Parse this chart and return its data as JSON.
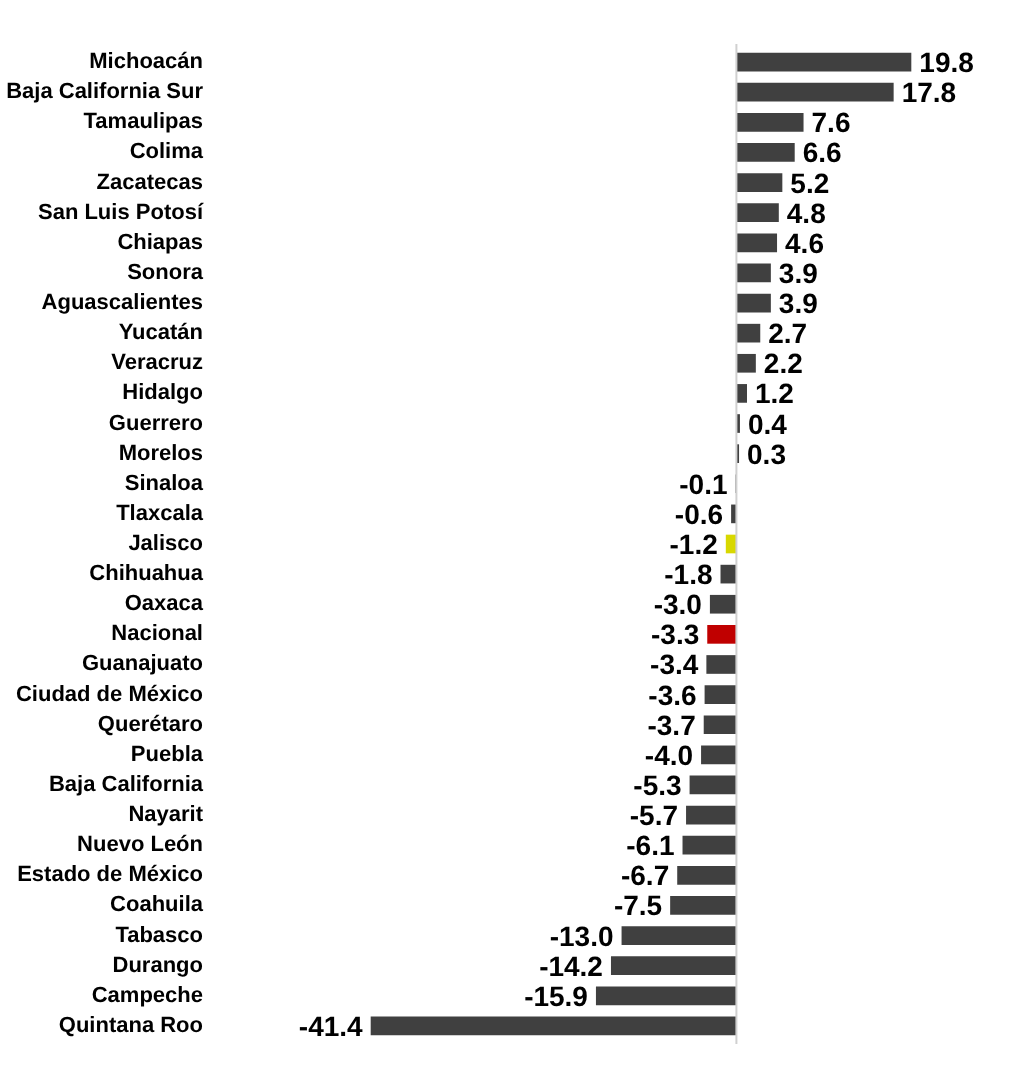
{
  "chart_data": {
    "type": "bar",
    "orientation": "horizontal",
    "grid": false,
    "value_labels": [
      "19.8",
      "17.8",
      "7.6",
      "6.6",
      "5.2",
      "4.8",
      "4.6",
      "3.9",
      "3.9",
      "2.7",
      "2.2",
      "1.2",
      "0.4",
      "0.3",
      "-0.1",
      "-0.6",
      "-1.2",
      "-1.8",
      "-3.0",
      "-3.3",
      "-3.4",
      "-3.6",
      "-3.7",
      "-4.0",
      "-5.3",
      "-5.7",
      "-6.1",
      "-6.7",
      "-7.5",
      "-13.0",
      "-14.2",
      "-15.9",
      "-41.4"
    ],
    "categories": [
      "Michoacán",
      "Baja California Sur",
      "Tamaulipas",
      "Colima",
      "Zacatecas",
      "San Luis Potosí",
      "Chiapas",
      "Sonora",
      "Aguascalientes",
      "Yucatán",
      "Veracruz",
      "Hidalgo",
      "Guerrero",
      "Morelos",
      "Sinaloa",
      "Tlaxcala",
      "Jalisco",
      "Chihuahua",
      "Oaxaca",
      "Nacional",
      "Guanajuato",
      "Ciudad de México",
      "Querétaro",
      "Puebla",
      "Baja California",
      "Nayarit",
      "Nuevo León",
      "Estado de México",
      "Coahuila",
      "Tabasco",
      "Durango",
      "Campeche",
      "Quintana Roo"
    ],
    "values": [
      19.8,
      17.8,
      7.6,
      6.6,
      5.2,
      4.8,
      4.6,
      3.9,
      3.9,
      2.7,
      2.2,
      1.2,
      0.4,
      0.3,
      -0.1,
      -0.6,
      -1.2,
      -1.8,
      -3.0,
      -3.3,
      -3.4,
      -3.6,
      -3.7,
      -4.0,
      -5.3,
      -5.7,
      -6.1,
      -6.7,
      -7.5,
      -13.0,
      -14.2,
      -15.9,
      -41.4
    ],
    "colors": [
      "#404040",
      "#404040",
      "#404040",
      "#404040",
      "#404040",
      "#404040",
      "#404040",
      "#404040",
      "#404040",
      "#404040",
      "#404040",
      "#404040",
      "#404040",
      "#404040",
      "#404040",
      "#404040",
      "#d8d800",
      "#404040",
      "#404040",
      "#c00000",
      "#404040",
      "#404040",
      "#404040",
      "#404040",
      "#404040",
      "#404040",
      "#404040",
      "#404040",
      "#404040",
      "#404040",
      "#404040",
      "#404040",
      "#404040"
    ]
  }
}
